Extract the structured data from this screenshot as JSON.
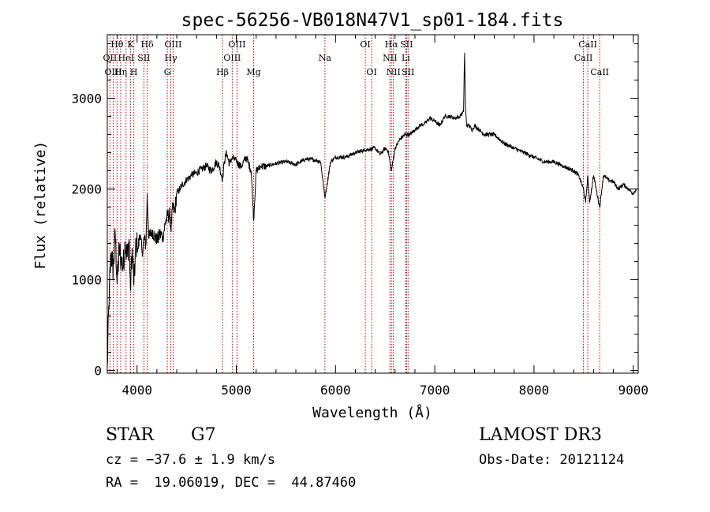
{
  "chart_data": {
    "type": "line",
    "title": "spec-56256-VB018N47V1_sp01-184.fits",
    "xlabel": "Wavelength (Å)",
    "ylabel": "Flux (relative)",
    "xlim": [
      3700,
      9050
    ],
    "ylim": [
      -30,
      3700
    ],
    "x_ticks": [
      4000,
      5000,
      6000,
      7000,
      8000,
      9000
    ],
    "y_ticks": [
      0,
      1000,
      2000,
      3000
    ],
    "series": [
      {
        "name": "spectrum",
        "x": [
          3700,
          3720,
          3740,
          3760,
          3780,
          3800,
          3820,
          3840,
          3860,
          3880,
          3900,
          3920,
          3933,
          3950,
          3968,
          3990,
          4010,
          4030,
          4050,
          4070,
          4090,
          4102,
          4120,
          4150,
          4180,
          4200,
          4230,
          4260,
          4290,
          4310,
          4330,
          4340,
          4360,
          4380,
          4400,
          4430,
          4460,
          4500,
          4550,
          4600,
          4650,
          4700,
          4750,
          4800,
          4830,
          4861,
          4880,
          4900,
          4930,
          4960,
          5000,
          5050,
          5100,
          5150,
          5175,
          5200,
          5250,
          5300,
          5400,
          5500,
          5600,
          5700,
          5800,
          5850,
          5893,
          5950,
          6000,
          6100,
          6200,
          6300,
          6400,
          6450,
          6500,
          6530,
          6563,
          6600,
          6650,
          6700,
          6750,
          6800,
          6850,
          6900,
          6950,
          7000,
          7050,
          7100,
          7150,
          7200,
          7250,
          7290,
          7300,
          7310,
          7320,
          7340,
          7380,
          7400,
          7450,
          7500,
          7600,
          7700,
          7800,
          7900,
          8000,
          8100,
          8200,
          8300,
          8400,
          8450,
          8498,
          8520,
          8542,
          8560,
          8600,
          8662,
          8700,
          8750,
          8800,
          8850,
          8900,
          8950,
          9000,
          9030
        ],
        "y": [
          50,
          900,
          1300,
          1100,
          1500,
          950,
          1350,
          1200,
          1150,
          1400,
          1250,
          1450,
          900,
          1350,
          950,
          1400,
          1350,
          1500,
          1300,
          1450,
          1380,
          1950,
          1450,
          1550,
          1480,
          1420,
          1500,
          1480,
          1650,
          1700,
          1720,
          1550,
          1800,
          1750,
          1950,
          2000,
          2050,
          2100,
          2150,
          2180,
          2220,
          2250,
          2200,
          2300,
          2250,
          2100,
          2300,
          2400,
          2280,
          2350,
          2300,
          2250,
          2350,
          2200,
          1650,
          2200,
          2250,
          2250,
          2280,
          2300,
          2270,
          2330,
          2320,
          2300,
          1900,
          2300,
          2350,
          2350,
          2400,
          2430,
          2450,
          2380,
          2450,
          2420,
          2200,
          2450,
          2550,
          2600,
          2600,
          2650,
          2700,
          2720,
          2780,
          2750,
          2700,
          2800,
          2800,
          2780,
          2800,
          2850,
          3500,
          2900,
          2700,
          2700,
          2650,
          2700,
          2650,
          2600,
          2600,
          2500,
          2450,
          2400,
          2350,
          2300,
          2300,
          2250,
          2200,
          2150,
          2000,
          1850,
          2150,
          1850,
          2150,
          1800,
          2150,
          2100,
          2080,
          2000,
          2050,
          2000,
          1950,
          2000
        ]
      }
    ],
    "lines": [
      {
        "label": "Hθ",
        "wave": 3798,
        "row": 0
      },
      {
        "label": "OII",
        "wave": 3727,
        "row": 1
      },
      {
        "label": "OIII",
        "wave": 3760,
        "row": 2
      },
      {
        "label": "Hη",
        "wave": 3835,
        "row": 2
      },
      {
        "label": "K",
        "wave": 3934,
        "row": 0
      },
      {
        "label": "HeI",
        "wave": 3889,
        "row": 1
      },
      {
        "label": "SII",
        "wave": 4069,
        "row": 1
      },
      {
        "label": "H",
        "wave": 3968,
        "row": 2
      },
      {
        "label": "Hδ",
        "wave": 4102,
        "row": 0
      },
      {
        "label": "OIII",
        "wave": 4363,
        "row": 0
      },
      {
        "label": "Hγ",
        "wave": 4340,
        "row": 1
      },
      {
        "label": "G",
        "wave": 4305,
        "row": 2
      },
      {
        "label": "OIII",
        "wave": 5007,
        "row": 0
      },
      {
        "label": "OIII",
        "wave": 4959,
        "row": 1
      },
      {
        "label": "Hβ",
        "wave": 4861,
        "row": 2
      },
      {
        "label": "Mg",
        "wave": 5175,
        "row": 2
      },
      {
        "label": "Na",
        "wave": 5893,
        "row": 1
      },
      {
        "label": "OI",
        "wave": 6300,
        "row": 0
      },
      {
        "label": "OI",
        "wave": 6364,
        "row": 2
      },
      {
        "label": "Hα",
        "wave": 6563,
        "row": 0
      },
      {
        "label": "NII",
        "wave": 6548,
        "row": 1
      },
      {
        "label": "NII",
        "wave": 6583,
        "row": 2
      },
      {
        "label": "SII",
        "wave": 6716,
        "row": 0
      },
      {
        "label": "Li",
        "wave": 6708,
        "row": 1
      },
      {
        "label": "SII",
        "wave": 6731,
        "row": 2
      },
      {
        "label": "CaII",
        "wave": 8542,
        "row": 0
      },
      {
        "label": "CaII",
        "wave": 8498,
        "row": 1
      },
      {
        "label": "CaII",
        "wave": 8662,
        "row": 2
      }
    ]
  },
  "info": {
    "object_type": "STAR",
    "subclass": "G7",
    "redshift": "cz = −37.6 ± 1.9 km/s",
    "coords": "RA =  19.06019, DEC =  44.87460",
    "survey": "LAMOST DR3",
    "obs_date": "Obs-Date: 20121124"
  }
}
